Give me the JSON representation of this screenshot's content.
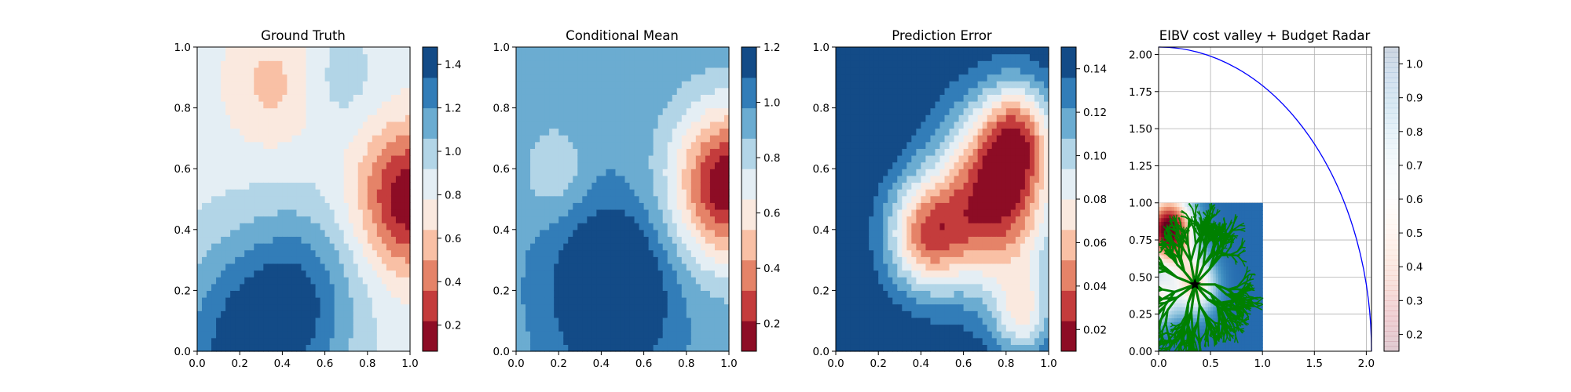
{
  "chart_data": [
    {
      "type": "heatmap",
      "title": "Ground Truth",
      "xlim": [
        0,
        1
      ],
      "ylim": [
        0,
        1
      ],
      "x_ticks": [
        "0.0",
        "0.2",
        "0.4",
        "0.6",
        "0.8",
        "1.0"
      ],
      "y_ticks": [
        "0.0",
        "0.2",
        "0.4",
        "0.6",
        "0.8",
        "1.0"
      ],
      "colormap": "RdBu",
      "colorbar": {
        "range": [
          0.08,
          1.48
        ],
        "ticks": [
          "0.2",
          "0.4",
          "0.6",
          "0.8",
          "1.0",
          "1.2",
          "1.4"
        ]
      },
      "field": {
        "base": 0.85,
        "tilt_x": 0.0,
        "tilt_y": 0.0,
        "bumps": [
          {
            "x": 1.0,
            "y": 0.5,
            "amplitude": -0.75,
            "spread": 0.17
          },
          {
            "x": 0.22,
            "y": 0.0,
            "amplitude": 0.55,
            "spread": 0.25
          },
          {
            "x": 0.5,
            "y": 0.2,
            "amplitude": 0.35,
            "spread": 0.2
          },
          {
            "x": 0.35,
            "y": 0.88,
            "amplitude": -0.25,
            "spread": 0.15
          },
          {
            "x": 0.68,
            "y": 0.9,
            "amplitude": 0.15,
            "spread": 0.12
          }
        ]
      }
    },
    {
      "type": "heatmap",
      "title": "Conditional Mean",
      "xlim": [
        0,
        1
      ],
      "ylim": [
        0,
        1
      ],
      "x_ticks": [
        "0.0",
        "0.2",
        "0.4",
        "0.6",
        "0.8",
        "1.0"
      ],
      "y_ticks": [
        "0.0",
        "0.2",
        "0.4",
        "0.6",
        "0.8",
        "1.0"
      ],
      "colormap": "RdBu",
      "colorbar": {
        "range": [
          0.1,
          1.2
        ],
        "ticks": [
          "0.2",
          "0.4",
          "0.6",
          "0.8",
          "1.0",
          "1.2"
        ]
      },
      "field": {
        "base": 0.95,
        "tilt_x": 0.0,
        "tilt_y": 0.0,
        "bumps": [
          {
            "x": 1.0,
            "y": 0.55,
            "amplitude": -0.85,
            "spread": 0.18
          },
          {
            "x": 0.45,
            "y": 0.2,
            "amplitude": 0.45,
            "spread": 0.18
          },
          {
            "x": 0.18,
            "y": 0.6,
            "amplitude": -0.18,
            "spread": 0.1
          }
        ]
      }
    },
    {
      "type": "heatmap",
      "title": "Prediction Error",
      "xlim": [
        0,
        1
      ],
      "ylim": [
        0,
        1
      ],
      "x_ticks": [
        "0.0",
        "0.2",
        "0.4",
        "0.6",
        "0.8",
        "1.0"
      ],
      "y_ticks": [
        "0.0",
        "0.2",
        "0.4",
        "0.6",
        "0.8",
        "1.0"
      ],
      "colormap": "RdBu",
      "colorbar": {
        "range": [
          0.01,
          0.15
        ],
        "ticks": [
          "0.02",
          "0.04",
          "0.06",
          "0.08",
          "0.10",
          "0.12",
          "0.14"
        ]
      },
      "field": {
        "base": 0.15,
        "tilt_x": 0.0,
        "tilt_y": 0.0,
        "bumps": [
          {
            "x": 0.75,
            "y": 0.5,
            "amplitude": -0.13,
            "spread": 0.2
          },
          {
            "x": 0.42,
            "y": 0.38,
            "amplitude": -0.09,
            "spread": 0.13
          },
          {
            "x": 0.85,
            "y": 0.72,
            "amplitude": -0.07,
            "spread": 0.12
          },
          {
            "x": 0.88,
            "y": 0.12,
            "amplitude": -0.06,
            "spread": 0.1
          }
        ]
      }
    },
    {
      "type": "scatter",
      "title": "EIBV cost valley + Budget Radar",
      "xlim": [
        0,
        2.05
      ],
      "ylim": [
        0,
        2.05
      ],
      "x_ticks": [
        "0.0",
        "0.5",
        "1.0",
        "1.5",
        "2.0"
      ],
      "y_ticks": [
        "0.00",
        "0.25",
        "0.50",
        "0.75",
        "1.00",
        "1.25",
        "1.50",
        "1.75",
        "2.00"
      ],
      "grid": true,
      "colormap": "RdBu",
      "colorbar": {
        "range": [
          0.15,
          1.05
        ],
        "ticks": [
          "0.2",
          "0.3",
          "0.4",
          "0.5",
          "0.6",
          "0.7",
          "0.8",
          "0.9",
          "1.0"
        ]
      },
      "budget_radius": 2.05,
      "budget_color": "#0000ff",
      "current_location": {
        "x": 0.35,
        "y": 0.45
      },
      "cost_valley_extent": {
        "x": [
          0,
          1
        ],
        "y": [
          0,
          1
        ]
      },
      "cost_field": {
        "base": 0.95,
        "tilt_x": 0.0,
        "tilt_y": 0.0,
        "bumps": [
          {
            "x": 0.1,
            "y": 0.82,
            "amplitude": -0.85,
            "spread": 0.16
          },
          {
            "x": 0.35,
            "y": 0.45,
            "amplitude": -0.45,
            "spread": 0.14
          },
          {
            "x": 0.0,
            "y": 0.35,
            "amplitude": -0.35,
            "spread": 0.12
          }
        ]
      },
      "tree_color": "#008000"
    }
  ]
}
